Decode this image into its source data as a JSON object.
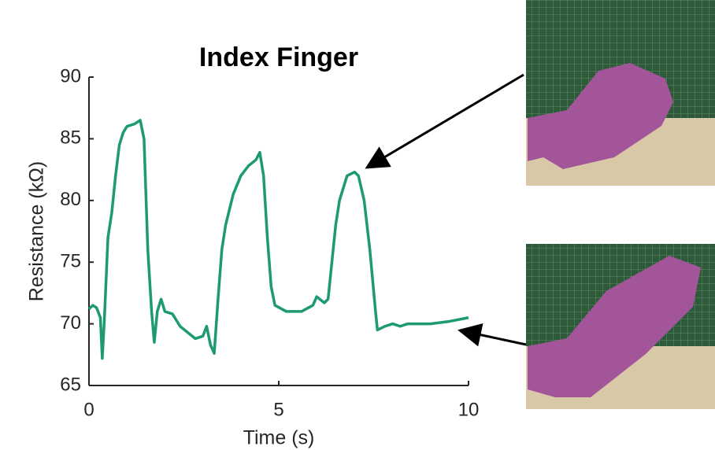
{
  "chart_data": {
    "type": "line",
    "title": "Index Finger",
    "x_label": "Time (s)",
    "y_label": "Resistance (kΩ)",
    "xlim": [
      0,
      10
    ],
    "ylim": [
      65,
      90
    ],
    "xticks": [
      0,
      5,
      10
    ],
    "yticks": [
      65,
      70,
      75,
      80,
      85,
      90
    ],
    "series": [
      {
        "color": "#1d9a74",
        "x": [
          0,
          0.1,
          0.2,
          0.3,
          0.35,
          0.4,
          0.5,
          0.6,
          0.7,
          0.8,
          0.9,
          1.0,
          1.2,
          1.35,
          1.45,
          1.55,
          1.65,
          1.72,
          1.8,
          1.9,
          2.0,
          2.2,
          2.4,
          2.6,
          2.8,
          3.0,
          3.1,
          3.2,
          3.3,
          3.4,
          3.5,
          3.6,
          3.8,
          4.0,
          4.2,
          4.4,
          4.5,
          4.6,
          4.7,
          4.8,
          4.9,
          5.2,
          5.6,
          5.9,
          6.0,
          6.2,
          6.3,
          6.4,
          6.5,
          6.6,
          6.8,
          7.0,
          7.1,
          7.25,
          7.4,
          7.55,
          7.6,
          7.8,
          8.0,
          8.2,
          8.4,
          9.0,
          9.5,
          10.0
        ],
        "values": [
          71.2,
          71.5,
          71.3,
          70.5,
          67.2,
          70,
          77,
          79,
          82,
          84.5,
          85.5,
          86,
          86.2,
          86.5,
          85,
          76,
          71,
          68.5,
          71,
          72,
          71,
          70.8,
          69.8,
          69.3,
          68.8,
          69,
          69.8,
          68.3,
          67.6,
          72,
          76,
          78,
          80.5,
          82,
          82.8,
          83.3,
          83.9,
          82,
          77,
          73,
          71.5,
          71,
          71,
          71.5,
          72.2,
          71.7,
          72,
          75,
          78,
          80,
          82,
          82.3,
          82,
          80,
          76,
          71,
          69.5,
          69.8,
          70,
          69.8,
          70,
          70,
          70.2,
          70.5
        ]
      }
    ]
  }
}
